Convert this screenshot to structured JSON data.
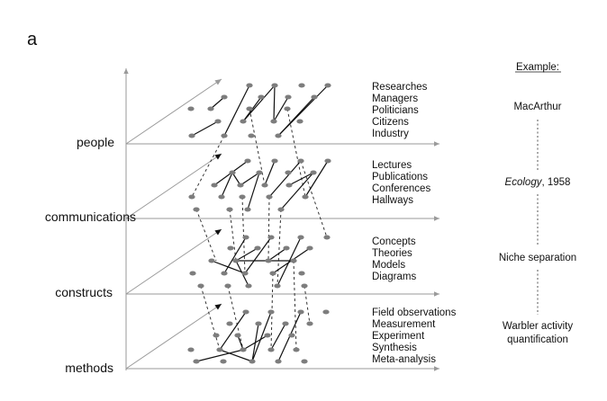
{
  "panel_label": "a",
  "layers": [
    {
      "label": "people",
      "items": [
        "Researches",
        "Managers",
        "Politicians",
        "Citizens",
        "Industry"
      ]
    },
    {
      "label": "communications",
      "items": [
        "Lectures",
        "Publications",
        "Conferences",
        "Hallways"
      ]
    },
    {
      "label": "constructs",
      "items": [
        "Concepts",
        "Theories",
        "Models",
        "Diagrams"
      ]
    },
    {
      "label": "methods",
      "items": [
        "Field observations",
        "Measurement",
        "Experiment",
        "Synthesis",
        "Meta-analysis"
      ]
    }
  ],
  "example": {
    "header": "Example:",
    "people": "MacArthur",
    "communications_prefix": "Ecology",
    "communications_suffix": ", 1958",
    "constructs": "Niche separation",
    "methods_line1": "Warbler activity",
    "methods_line2": "quantification"
  },
  "colors": {
    "node": "#7d7d7d",
    "axis": "#9a9a9a",
    "edge": "#111111",
    "dashed": "#333333"
  }
}
